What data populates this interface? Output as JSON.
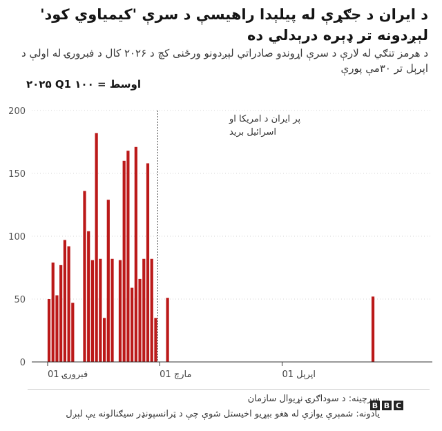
{
  "brand": {
    "logo_letters": [
      "B",
      "B",
      "C"
    ],
    "bar_color": "#bb1919"
  },
  "chart_data": {
    "type": "bar",
    "title": "د ایران د جګړې له پیلېدا راهیسې د سرې 'کیمیاوي کود' لېږدونه تر ډېره درېدلي ده",
    "subtitle": "د هرمز تنګي له لارې د سرې اړوندو صادراتي لېږدونو ورځنی کچ د ۲۰۲۶ کال د فبرورۍ له اولې د اپرېل تر ۳۰مې پورې",
    "ylabel": "۲۰۲۵ Q1 اوسط = ۱۰۰",
    "ylim": [
      0,
      200
    ],
    "yticks": [
      0,
      50,
      100,
      150,
      200
    ],
    "x_ticks": [
      {
        "day": 1,
        "label": "01 فبرورۍ"
      },
      {
        "day": 29,
        "label": "01 مارچ"
      },
      {
        "day": 60,
        "label": "01 اپرېل"
      }
    ],
    "x_range": [
      1,
      89
    ],
    "bars": [
      {
        "day": 1,
        "value": 50
      },
      {
        "day": 2,
        "value": 79
      },
      {
        "day": 3,
        "value": 53
      },
      {
        "day": 4,
        "value": 77
      },
      {
        "day": 5,
        "value": 97
      },
      {
        "day": 6,
        "value": 92
      },
      {
        "day": 7,
        "value": 47
      },
      {
        "day": 10,
        "value": 136
      },
      {
        "day": 11,
        "value": 104
      },
      {
        "day": 12,
        "value": 81
      },
      {
        "day": 13,
        "value": 182
      },
      {
        "day": 14,
        "value": 82
      },
      {
        "day": 15,
        "value": 35
      },
      {
        "day": 16,
        "value": 129
      },
      {
        "day": 17,
        "value": 82
      },
      {
        "day": 19,
        "value": 81
      },
      {
        "day": 20,
        "value": 160
      },
      {
        "day": 21,
        "value": 168
      },
      {
        "day": 22,
        "value": 59
      },
      {
        "day": 23,
        "value": 171
      },
      {
        "day": 24,
        "value": 66
      },
      {
        "day": 25,
        "value": 82
      },
      {
        "day": 26,
        "value": 158
      },
      {
        "day": 27,
        "value": 82
      },
      {
        "day": 28,
        "value": 35
      },
      {
        "day": 31,
        "value": 51
      },
      {
        "day": 83,
        "value": 52
      }
    ],
    "annotation": {
      "day": 28,
      "text": [
        "پر ایران د امریکا او",
        "اسرائیل برید"
      ]
    },
    "grid": true,
    "source": "سرچینه: د سوداګرۍ نړیوال سازمان",
    "note": "یادونه: شمېرې یوازې له هغو بېړیو اخیستل شوې چې د ټرانسپونډر سیګنالونه یې لېږل"
  }
}
